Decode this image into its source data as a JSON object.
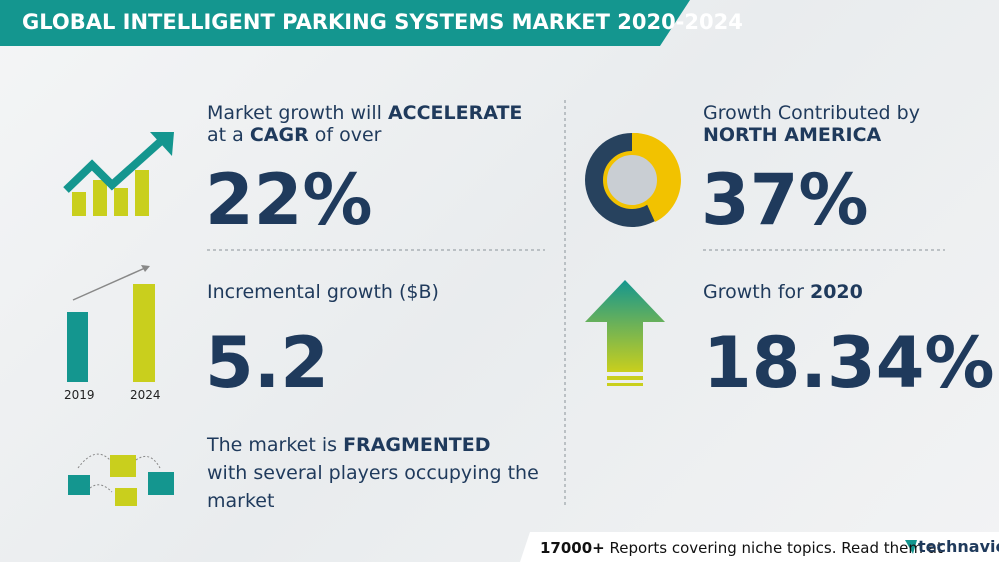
{
  "header": {
    "title": "GLOBAL INTELLIGENT PARKING SYSTEMS MARKET 2020-2024"
  },
  "cagr": {
    "lead": "Market growth will",
    "emphasis": "ACCELERATE",
    "line2_lead": "at a",
    "line2_emphasis": "CAGR",
    "line2_tail": "of over",
    "value": "22%"
  },
  "incremental": {
    "label": "Incremental growth ($B)",
    "value": "5.2",
    "start_year": "2019",
    "end_year": "2024"
  },
  "structure": {
    "lead": "The market is",
    "emphasis": "FRAGMENTED",
    "line2": "with several players occupying the",
    "line3": "market"
  },
  "region": {
    "label": "Growth Contributed by",
    "emphasis": "NORTH AMERICA",
    "value": "37%"
  },
  "yoy": {
    "lead": "Growth for",
    "emphasis": "2020",
    "value": "18.34%"
  },
  "footer": {
    "count": "17000+",
    "text": "Reports covering niche topics. Read them at",
    "brand": "technavio"
  }
}
